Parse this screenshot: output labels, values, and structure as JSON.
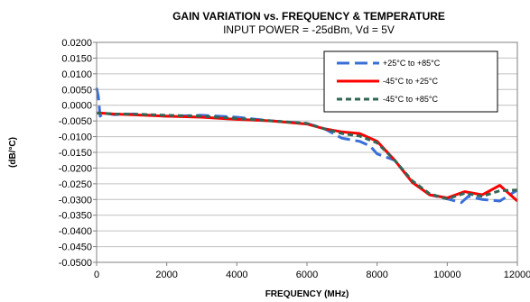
{
  "chart_data": {
    "type": "line",
    "title": "GAIN VARIATION vs. FREQUENCY & TEMPERATURE",
    "subtitle": "INPUT POWER = -25dBm,  Vd = 5V",
    "xlabel": "FREQUENCY (MHz)",
    "ylabel": "(dB/°C)",
    "xlim": [
      0,
      12000
    ],
    "ylim": [
      -0.05,
      0.02
    ],
    "x_ticks": [
      0,
      2000,
      4000,
      6000,
      8000,
      10000,
      12000
    ],
    "x_tick_labels": [
      "0",
      "2000",
      "4000",
      "6000",
      "8000",
      "10000",
      "12000"
    ],
    "y_ticks": [
      0.02,
      0.015,
      0.01,
      0.005,
      0.0,
      -0.005,
      -0.01,
      -0.015,
      -0.02,
      -0.025,
      -0.03,
      -0.035,
      -0.04,
      -0.045,
      -0.05
    ],
    "y_tick_labels": [
      "0.0200",
      "0.0150",
      "0.0100",
      "0.0050",
      "0.0000",
      "-0.0050",
      "-0.0100",
      "-0.0150",
      "-0.0200",
      "-0.0250",
      "-0.0300",
      "-0.0350",
      "-0.0400",
      "-0.0450",
      "-0.0500"
    ],
    "grid": "horizontal",
    "legend_position": "top-right",
    "series": [
      {
        "name": "+25°C to +85°C",
        "color": "#3a6fd8",
        "dash": "long-dash",
        "x": [
          0,
          50,
          100,
          200,
          500,
          1000,
          2000,
          3000,
          4000,
          5000,
          6000,
          6500,
          7000,
          7500,
          7800,
          8000,
          8500,
          9000,
          9500,
          10000,
          10400,
          10600,
          11000,
          11500,
          12000
        ],
        "y": [
          0.0055,
          0.0028,
          -0.0035,
          -0.0025,
          -0.003,
          -0.0028,
          -0.0035,
          -0.0032,
          -0.0038,
          -0.005,
          -0.0058,
          -0.0075,
          -0.0105,
          -0.0115,
          -0.013,
          -0.0155,
          -0.0175,
          -0.0245,
          -0.0285,
          -0.0298,
          -0.031,
          -0.029,
          -0.03,
          -0.0305,
          -0.027
        ]
      },
      {
        "name": "-45°C to +25°C",
        "color": "#ff0000",
        "dash": "solid",
        "x": [
          0,
          100,
          500,
          1000,
          2000,
          3000,
          4000,
          5000,
          6000,
          6500,
          7000,
          7500,
          8000,
          8500,
          9000,
          9500,
          10000,
          10500,
          11000,
          11500,
          12000
        ],
        "y": [
          -0.0025,
          -0.0025,
          -0.0028,
          -0.003,
          -0.0035,
          -0.0038,
          -0.0045,
          -0.005,
          -0.006,
          -0.0075,
          -0.0085,
          -0.009,
          -0.0115,
          -0.0175,
          -0.0245,
          -0.0285,
          -0.0295,
          -0.0275,
          -0.0285,
          -0.0255,
          -0.0305
        ]
      },
      {
        "name": "-45°C to +85°C",
        "color": "#336655",
        "dash": "short-dash",
        "x": [
          0,
          100,
          500,
          1000,
          2000,
          3000,
          4000,
          5000,
          6000,
          6500,
          7000,
          7500,
          8000,
          8500,
          9000,
          9500,
          10000,
          10500,
          11000,
          11500,
          12000
        ],
        "y": [
          -0.0025,
          -0.0025,
          -0.0028,
          -0.0028,
          -0.0032,
          -0.0035,
          -0.0042,
          -0.005,
          -0.0058,
          -0.0075,
          -0.009,
          -0.0098,
          -0.012,
          -0.0175,
          -0.024,
          -0.0282,
          -0.0298,
          -0.028,
          -0.029,
          -0.0272,
          -0.027
        ]
      }
    ]
  }
}
